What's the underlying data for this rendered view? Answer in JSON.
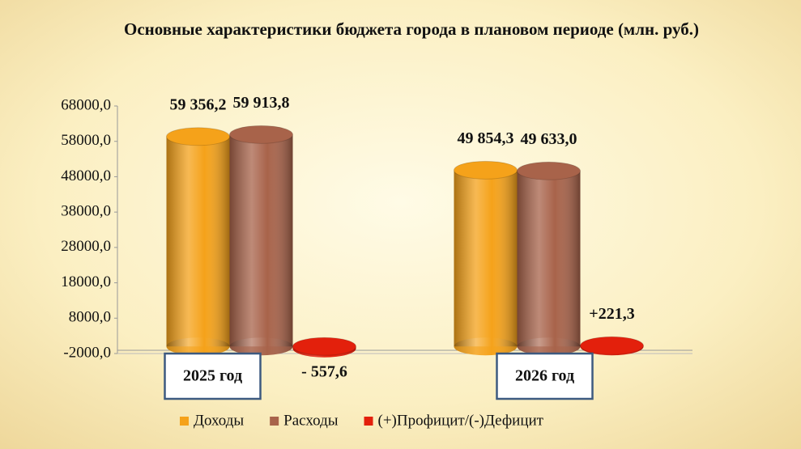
{
  "chart_data": {
    "type": "bar",
    "title": "Основные характеристики бюджета города в плановом периоде (млн. руб.)",
    "categories": [
      "2025 год",
      "2026 год"
    ],
    "series": [
      {
        "name": "Доходы",
        "color": "#f5a21a",
        "values": [
          59356.2,
          49854.3
        ],
        "value_labels": [
          "59 356,2",
          "49 854,3"
        ]
      },
      {
        "name": "Расходы",
        "color": "#a8634a",
        "values": [
          59913.8,
          49633.0
        ],
        "value_labels": [
          "59 913,8",
          "49 633,0"
        ]
      },
      {
        "name": "(+)Профицит/(-)Дефицит",
        "color": "#e3200c",
        "values": [
          -557.6,
          221.3
        ],
        "value_labels": [
          "- 557,6",
          "+221,3"
        ]
      }
    ],
    "ylim": [
      -2000,
      68000
    ],
    "yticks": [
      {
        "value": -2000,
        "label": "-2000,0"
      },
      {
        "value": 8000,
        "label": "8000,0"
      },
      {
        "value": 18000,
        "label": "18000,0"
      },
      {
        "value": 28000,
        "label": "28000,0"
      },
      {
        "value": 38000,
        "label": "38000,0"
      },
      {
        "value": 48000,
        "label": "48000,0"
      },
      {
        "value": 58000,
        "label": "58000,0"
      },
      {
        "value": 68000,
        "label": "68000,0"
      }
    ],
    "grid": false,
    "legend": "bottom"
  }
}
